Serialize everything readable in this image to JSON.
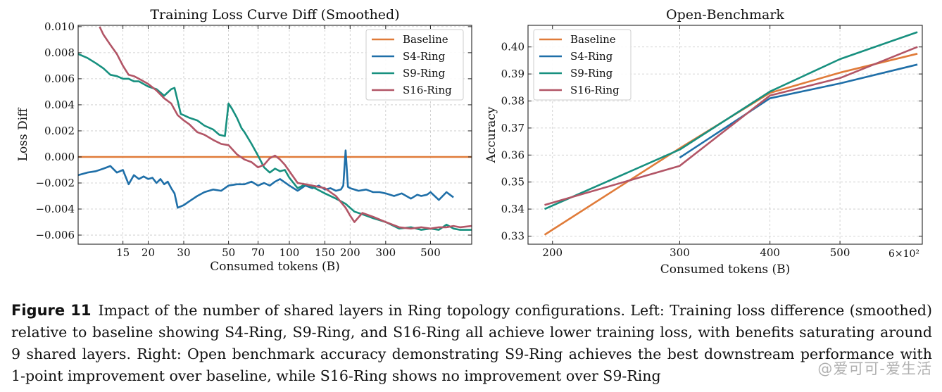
{
  "colors": {
    "Baseline": "#e07b39",
    "S4-Ring": "#1f6fa8",
    "S9-Ring": "#17907f",
    "S16-Ring": "#b25566"
  },
  "chart_data": [
    {
      "type": "line",
      "title": "Training Loss Curve Diff (Smoothed)",
      "xlabel": "Consumed tokens (B)",
      "ylabel": "Loss Diff",
      "xscale": "log",
      "xlim": [
        9,
        800
      ],
      "ylim": [
        -0.0067,
        0.0101
      ],
      "xticks": [
        15,
        20,
        30,
        50,
        70,
        100,
        150,
        200,
        300,
        500
      ],
      "xtick_labels": [
        "15",
        "20",
        "30",
        "50",
        "70",
        "100",
        "150",
        "200",
        "300",
        "500"
      ],
      "yticks": [
        0.01,
        0.008,
        0.006,
        0.004,
        0.002,
        0.0,
        -0.002,
        -0.004,
        -0.006
      ],
      "ytick_labels": [
        "0.010",
        "0.008",
        "0.006",
        "0.004",
        "0.002",
        "0.000",
        "−0.002",
        "−0.004",
        "−0.006"
      ],
      "grid": true,
      "legend": "top-right",
      "series": [
        {
          "name": "Baseline",
          "x": [
            9,
            800
          ],
          "y": [
            0,
            0
          ]
        },
        {
          "name": "S4-Ring",
          "x": [
            9,
            10,
            11,
            12,
            13,
            14,
            15,
            16,
            17,
            18,
            19,
            20,
            21,
            22,
            23,
            24,
            25,
            26,
            27,
            28,
            30,
            32,
            35,
            38,
            42,
            46,
            50,
            55,
            60,
            65,
            70,
            75,
            80,
            85,
            90,
            100,
            110,
            120,
            130,
            140,
            150,
            160,
            170,
            180,
            185,
            190,
            195,
            200,
            220,
            240,
            260,
            280,
            300,
            330,
            360,
            400,
            430,
            450,
            480,
            500,
            550,
            600,
            650
          ],
          "y": [
            -0.0014,
            -0.0012,
            -0.0011,
            -0.0009,
            -0.0007,
            -0.0012,
            -0.001,
            -0.0021,
            -0.0014,
            -0.0017,
            -0.0015,
            -0.0017,
            -0.0016,
            -0.002,
            -0.0017,
            -0.0021,
            -0.0019,
            -0.0024,
            -0.0028,
            -0.0039,
            -0.0037,
            -0.0034,
            -0.003,
            -0.0027,
            -0.0025,
            -0.0026,
            -0.0022,
            -0.0021,
            -0.0021,
            -0.0019,
            -0.0022,
            -0.002,
            -0.0022,
            -0.0019,
            -0.0017,
            -0.0022,
            -0.0026,
            -0.0022,
            -0.0024,
            -0.0022,
            -0.0025,
            -0.0024,
            -0.0026,
            -0.0025,
            -0.0022,
            0.0005,
            -0.0023,
            -0.0024,
            -0.0026,
            -0.0025,
            -0.0027,
            -0.0027,
            -0.0028,
            -0.003,
            -0.0028,
            -0.0032,
            -0.0029,
            -0.003,
            -0.0029,
            -0.0027,
            -0.0033,
            -0.0027,
            -0.0031
          ]
        },
        {
          "name": "S9-Ring",
          "x": [
            9,
            10,
            11,
            12,
            13,
            14,
            15,
            16,
            17,
            18,
            20,
            22,
            24,
            26,
            27,
            28,
            29,
            30,
            32,
            35,
            38,
            42,
            45,
            48,
            50,
            52,
            55,
            58,
            60,
            65,
            70,
            75,
            80,
            85,
            90,
            95,
            100,
            110,
            120,
            130,
            150,
            170,
            190,
            210,
            230,
            260,
            300,
            350,
            400,
            450,
            500,
            550,
            600,
            650,
            700,
            800
          ],
          "y": [
            0.0079,
            0.0076,
            0.0072,
            0.0068,
            0.0063,
            0.0062,
            0.006,
            0.006,
            0.0058,
            0.0058,
            0.0054,
            0.0052,
            0.0047,
            0.0052,
            0.0053,
            0.0043,
            0.0033,
            0.0032,
            0.003,
            0.0028,
            0.0024,
            0.0021,
            0.0017,
            0.0016,
            0.0041,
            0.0037,
            0.003,
            0.0022,
            0.0019,
            0.001,
            0.0001,
            -0.0008,
            -0.0012,
            -0.0009,
            -0.0011,
            -0.001,
            -0.0016,
            -0.0024,
            -0.0021,
            -0.0023,
            -0.0028,
            -0.0032,
            -0.0036,
            -0.0042,
            -0.0044,
            -0.0047,
            -0.005,
            -0.0055,
            -0.0054,
            -0.0056,
            -0.0055,
            -0.0056,
            -0.0052,
            -0.0055,
            -0.0056,
            -0.0056
          ]
        },
        {
          "name": "S16-Ring",
          "x": [
            11.5,
            12,
            13,
            14,
            15,
            16,
            17,
            18,
            20,
            22,
            24,
            26,
            28,
            30,
            32,
            35,
            38,
            42,
            46,
            50,
            55,
            60,
            65,
            70,
            75,
            80,
            85,
            90,
            95,
            100,
            110,
            120,
            130,
            150,
            170,
            190,
            200,
            210,
            230,
            260,
            300,
            350,
            400,
            450,
            500,
            550,
            600,
            650,
            700,
            800
          ],
          "y": [
            0.01,
            0.0094,
            0.0086,
            0.0079,
            0.007,
            0.0063,
            0.0062,
            0.006,
            0.0056,
            0.0051,
            0.0045,
            0.0041,
            0.0032,
            0.0028,
            0.0025,
            0.0019,
            0.0017,
            0.0013,
            0.001,
            0.0009,
            0.0002,
            -0.0002,
            -0.0004,
            -0.0008,
            -0.0006,
            -0.0001,
            0.0001,
            -0.0002,
            -0.0006,
            -0.0011,
            -0.002,
            -0.0021,
            -0.0022,
            -0.0024,
            -0.003,
            -0.0039,
            -0.0045,
            -0.005,
            -0.0043,
            -0.0046,
            -0.005,
            -0.0054,
            -0.0055,
            -0.0054,
            -0.0055,
            -0.0054,
            -0.0054,
            -0.0053,
            -0.0054,
            -0.0053
          ]
        }
      ]
    },
    {
      "type": "line",
      "title": "Open-Benchmark",
      "xlabel": "Consumed tokens (B)",
      "ylabel": "Accuracy",
      "xscale": "log",
      "xlim": [
        185,
        650
      ],
      "ylim": [
        0.327,
        0.408
      ],
      "xticks": [
        200,
        300,
        400,
        500
      ],
      "xtick_labels": [
        "200",
        "300",
        "400",
        "500"
      ],
      "x_offset_label": "6×10²",
      "yticks": [
        0.33,
        0.34,
        0.35,
        0.36,
        0.37,
        0.38,
        0.39,
        0.4
      ],
      "ytick_labels": [
        "0.33",
        "0.34",
        "0.35",
        "0.36",
        "0.37",
        "0.38",
        "0.39",
        "0.40"
      ],
      "grid": true,
      "legend": "top-left",
      "series": [
        {
          "name": "Baseline",
          "x": [
            195,
            300,
            400,
            500,
            640
          ],
          "y": [
            0.3305,
            0.3625,
            0.383,
            0.3905,
            0.3975
          ]
        },
        {
          "name": "S4-Ring",
          "x": [
            300,
            400,
            500,
            640
          ],
          "y": [
            0.359,
            0.381,
            0.3865,
            0.3935
          ]
        },
        {
          "name": "S9-Ring",
          "x": [
            195,
            300,
            400,
            500,
            640
          ],
          "y": [
            0.34,
            0.362,
            0.3835,
            0.3955,
            0.4055
          ]
        },
        {
          "name": "S16-Ring",
          "x": [
            195,
            300,
            400,
            500,
            640
          ],
          "y": [
            0.3415,
            0.356,
            0.382,
            0.3885,
            0.4
          ]
        }
      ]
    }
  ],
  "caption": {
    "label": "Figure 11",
    "text": "Impact of the number of shared layers in Ring topology configurations. Left: Training loss difference (smoothed) relative to baseline showing S4-Ring, S9-Ring, and S16-Ring all achieve lower training loss, with benefits saturating around 9 shared layers. Right: Open benchmark accuracy demonstrating S9-Ring achieves the best downstream performance with 1-point improvement over baseline, while S16-Ring shows no improvement over S9-Ring"
  },
  "watermark": "@爱可可-爱生活"
}
